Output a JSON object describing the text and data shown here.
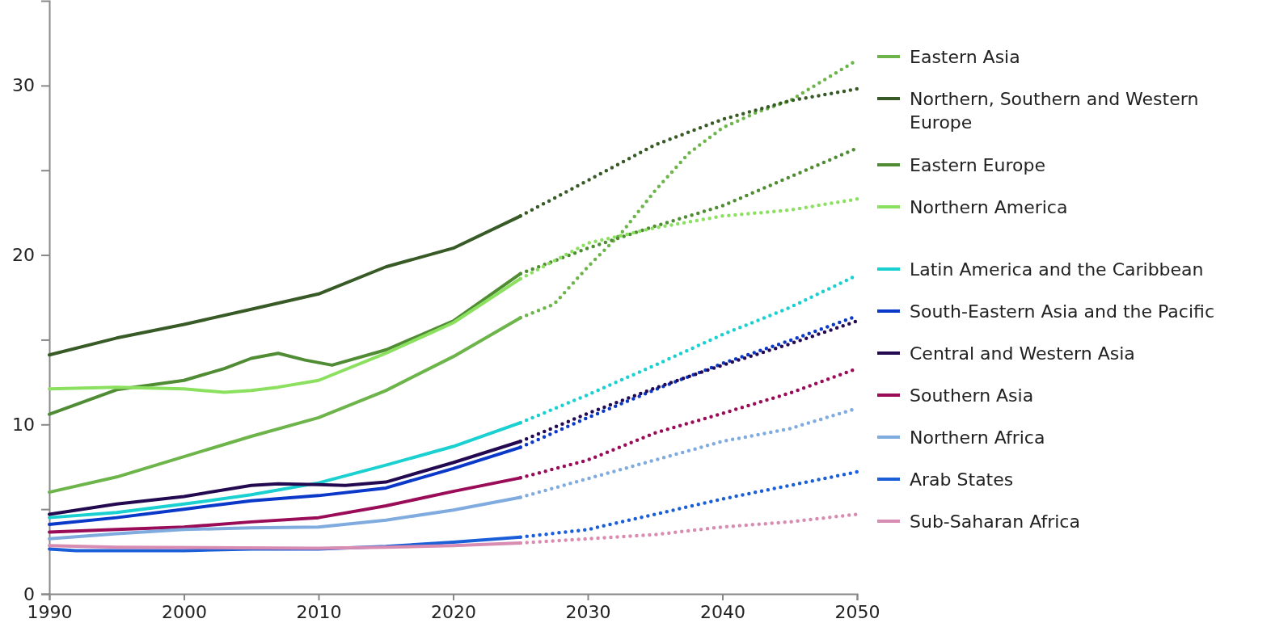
{
  "chart_data": {
    "type": "line",
    "xlim": [
      1990,
      2050
    ],
    "xticks": [
      1990,
      2000,
      2010,
      2020,
      2030,
      2040,
      2050
    ],
    "ylim": [
      0,
      35
    ],
    "yticks": [
      0,
      {
        "value": 5,
        "label": null
      },
      10,
      {
        "value": 15,
        "label": null
      },
      20,
      {
        "value": 25,
        "label": null
      },
      30
    ],
    "grid": false,
    "legend": "right",
    "marker": "none",
    "line_style": "solid",
    "series": [
      {
        "name": "Eastern Asia",
        "color": "#6db54b",
        "x": [
          1990,
          1995,
          2000,
          2005,
          2010,
          2015,
          2020,
          2025
        ],
        "values": [
          6.0,
          6.9,
          8.1,
          9.3,
          10.4,
          12.0,
          14.0,
          16.3
        ]
      },
      {
        "name": "Northern, Southern and Western Europe",
        "color": "#375a26",
        "x": [
          1990,
          1995,
          2000,
          2005,
          2010,
          2015,
          2020,
          2025
        ],
        "values": [
          14.1,
          15.1,
          15.9,
          16.8,
          17.7,
          19.3,
          20.4,
          22.3
        ]
      },
      {
        "name": "Eastern Europe",
        "color": "#4f8c34",
        "x": [
          1990,
          1995,
          2000,
          2003,
          2005,
          2007,
          2009,
          2011,
          2015,
          2020,
          2025
        ],
        "values": [
          10.6,
          12.05,
          12.6,
          13.3,
          13.9,
          14.2,
          13.8,
          13.5,
          14.4,
          16.1,
          18.9
        ]
      },
      {
        "name": "Northern America",
        "color": "#8be15f",
        "x": [
          1990,
          1995,
          2000,
          2003,
          2005,
          2007,
          2010,
          2015,
          2020,
          2025
        ],
        "values": [
          12.1,
          12.2,
          12.1,
          11.9,
          12.0,
          12.2,
          12.6,
          14.2,
          16.0,
          18.6
        ]
      },
      {
        "name": "Latin America and the Caribbean",
        "color": "#1ad0d0",
        "x": [
          1990,
          1995,
          2000,
          2005,
          2010,
          2015,
          2020,
          2025
        ],
        "values": [
          4.5,
          4.8,
          5.3,
          5.85,
          6.55,
          7.6,
          8.7,
          10.1
        ]
      },
      {
        "name": "South-Eastern Asia and the Pacific",
        "color": "#0a38c8",
        "x": [
          1990,
          1995,
          2000,
          2005,
          2010,
          2015,
          2020,
          2025
        ],
        "values": [
          4.1,
          4.5,
          5.0,
          5.5,
          5.8,
          6.25,
          7.4,
          8.65
        ]
      },
      {
        "name": "Central and Western Asia",
        "color": "#230a50",
        "x": [
          1990,
          1995,
          2000,
          2005,
          2007,
          2010,
          2012,
          2015,
          2020,
          2025
        ],
        "values": [
          4.7,
          5.3,
          5.75,
          6.4,
          6.5,
          6.45,
          6.4,
          6.6,
          7.75,
          9.0
        ]
      },
      {
        "name": "Southern Asia",
        "color": "#9a0c58",
        "x": [
          1990,
          1995,
          2000,
          2005,
          2010,
          2015,
          2020,
          2025
        ],
        "values": [
          3.65,
          3.8,
          3.95,
          4.25,
          4.5,
          5.2,
          6.05,
          6.85
        ]
      },
      {
        "name": "Northern Africa",
        "color": "#7fabdf",
        "x": [
          1990,
          1995,
          2000,
          2005,
          2010,
          2015,
          2020,
          2025
        ],
        "values": [
          3.25,
          3.55,
          3.8,
          3.9,
          3.95,
          4.35,
          4.95,
          5.7
        ]
      },
      {
        "name": "Arab States",
        "color": "#1a5fd8",
        "x": [
          1990,
          1992,
          2000,
          2005,
          2010,
          2015,
          2020,
          2025
        ],
        "values": [
          2.65,
          2.55,
          2.55,
          2.65,
          2.65,
          2.8,
          3.05,
          3.35
        ]
      },
      {
        "name": "Sub-Saharan Africa",
        "color": "#d98cb2",
        "x": [
          1990,
          1995,
          2010,
          2015,
          2020,
          2025
        ],
        "values": [
          2.85,
          2.75,
          2.7,
          2.75,
          2.85,
          3.0
        ]
      },
      {
        "color": "#6db54b",
        "line_style": "dotted",
        "x": [
          2025,
          2027.5,
          2030,
          2032.5,
          2035,
          2037.5,
          2040,
          2042.5,
          2045,
          2047.5,
          2050
        ],
        "values": [
          16.3,
          17.1,
          19.3,
          21.3,
          23.8,
          26.0,
          27.5,
          28.4,
          29.1,
          30.3,
          31.5
        ]
      },
      {
        "color": "#375a26",
        "line_style": "dotted",
        "x": [
          2025,
          2030,
          2035,
          2040,
          2045,
          2050
        ],
        "values": [
          22.3,
          24.4,
          26.5,
          28.0,
          29.1,
          29.8
        ]
      },
      {
        "color": "#4f8c34",
        "line_style": "dotted",
        "x": [
          2025,
          2030,
          2035,
          2040,
          2045,
          2050
        ],
        "values": [
          18.9,
          20.4,
          21.7,
          22.9,
          24.6,
          26.3
        ]
      },
      {
        "color": "#8be15f",
        "line_style": "dotted",
        "x": [
          2025,
          2030,
          2035,
          2040,
          2045,
          2050
        ],
        "values": [
          18.6,
          20.7,
          21.6,
          22.3,
          22.65,
          23.3
        ]
      },
      {
        "color": "#1ad0d0",
        "line_style": "dotted",
        "x": [
          2025,
          2030,
          2035,
          2040,
          2045,
          2050
        ],
        "values": [
          10.1,
          11.75,
          13.5,
          15.3,
          16.9,
          18.8
        ]
      },
      {
        "color": "#0a38c8",
        "line_style": "dotted",
        "x": [
          2025,
          2030,
          2035,
          2040,
          2045,
          2050
        ],
        "values": [
          8.65,
          10.4,
          12.05,
          13.6,
          14.95,
          16.4
        ]
      },
      {
        "color": "#230a50",
        "line_style": "dotted",
        "x": [
          2025,
          2030,
          2035,
          2040,
          2045,
          2050
        ],
        "values": [
          9.0,
          10.65,
          12.15,
          13.5,
          14.75,
          16.1
        ]
      },
      {
        "color": "#9a0c58",
        "line_style": "dotted",
        "x": [
          2025,
          2030,
          2035,
          2040,
          2045,
          2050
        ],
        "values": [
          6.85,
          7.9,
          9.5,
          10.65,
          11.85,
          13.3
        ]
      },
      {
        "color": "#7fabdf",
        "line_style": "dotted",
        "x": [
          2025,
          2030,
          2035,
          2040,
          2045,
          2050
        ],
        "values": [
          5.7,
          6.8,
          7.9,
          9.0,
          9.75,
          10.95
        ]
      },
      {
        "color": "#1a5fd8",
        "line_style": "dotted",
        "x": [
          2025,
          2030,
          2035,
          2040,
          2045,
          2050
        ],
        "values": [
          3.35,
          3.8,
          4.7,
          5.6,
          6.4,
          7.2
        ]
      },
      {
        "color": "#d98cb2",
        "line_style": "dotted",
        "x": [
          2025,
          2030,
          2035,
          2040,
          2045,
          2050
        ],
        "values": [
          3.0,
          3.25,
          3.5,
          3.95,
          4.25,
          4.7
        ]
      }
    ]
  }
}
